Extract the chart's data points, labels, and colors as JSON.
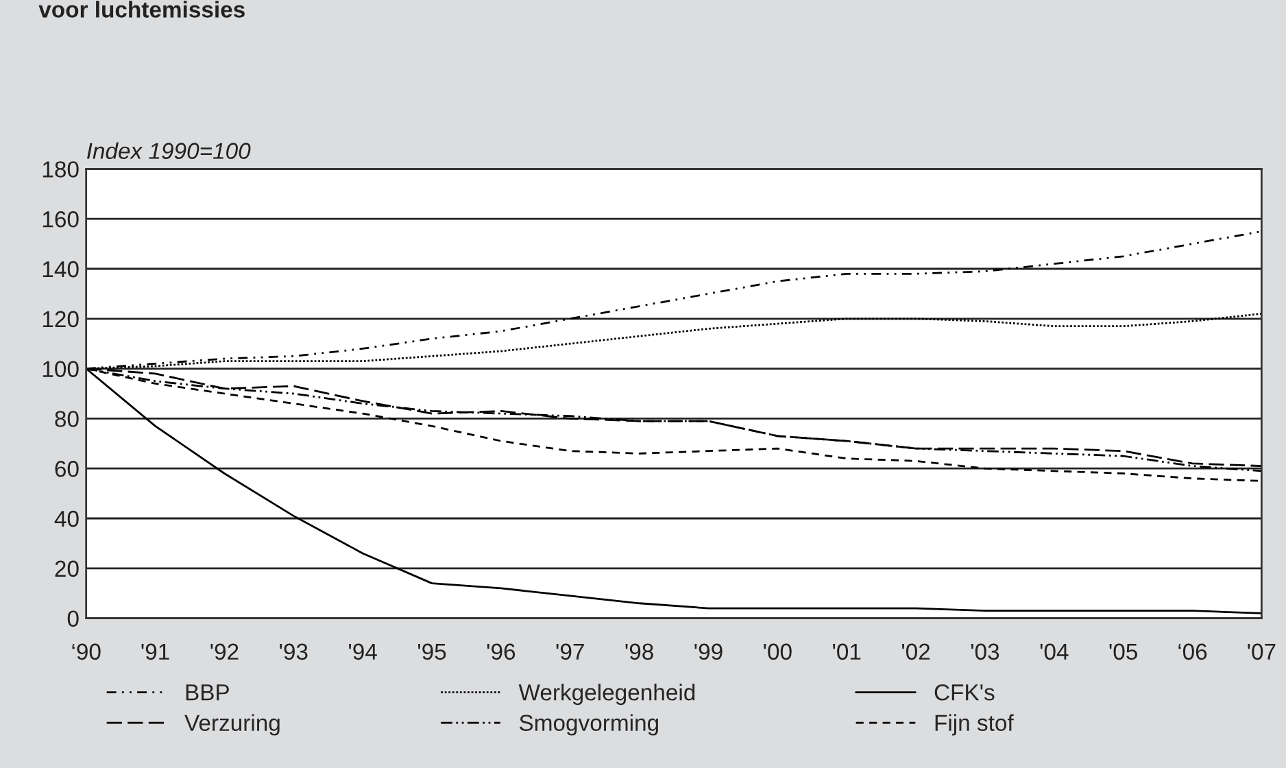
{
  "chart_data": {
    "type": "line",
    "title": "voor luchtemissies",
    "ylabel": "Index 1990=100",
    "categories": [
      "‘90",
      "'91",
      "'92",
      "'93",
      "'94",
      "'95",
      "'96",
      "'97",
      "'98",
      "'99",
      "'00",
      "'01",
      "'02",
      "'03",
      "'04",
      "'05",
      "‘06",
      "'07"
    ],
    "series": [
      {
        "name": "BBP",
        "color": "#000000",
        "line_style": "dashed",
        "values": [
          100,
          102,
          104,
          105,
          108,
          112,
          115,
          120,
          125,
          130,
          135,
          138,
          138,
          139,
          142,
          145,
          150,
          155
        ]
      },
      {
        "name": "Werkgelegenheid",
        "color": "#000000",
        "line_style": "dotted",
        "values": [
          100,
          101,
          103,
          103,
          103,
          105,
          107,
          110,
          113,
          116,
          118,
          120,
          120,
          119,
          117,
          117,
          119,
          122
        ]
      },
      {
        "name": "CFK's",
        "color": "#000000",
        "line_style": "solid",
        "values": [
          100,
          77,
          58,
          41,
          26,
          14,
          12,
          9,
          6,
          4,
          4,
          4,
          4,
          3,
          3,
          3,
          3,
          2
        ]
      },
      {
        "name": "Verzuring",
        "color": "#000000",
        "line_style": "dashed",
        "values": [
          100,
          98,
          92,
          93,
          87,
          82,
          83,
          80,
          79,
          79,
          73,
          71,
          68,
          68,
          68,
          67,
          62,
          61
        ]
      },
      {
        "name": "Smogvorming",
        "color": "#000000",
        "line_style": "dashed",
        "values": [
          100,
          95,
          92,
          90,
          86,
          83,
          82,
          81,
          79,
          79,
          73,
          71,
          68,
          67,
          66,
          65,
          61,
          59
        ]
      },
      {
        "name": "Fijn stof",
        "color": "#000000",
        "line_style": "dashed",
        "values": [
          100,
          94,
          90,
          86,
          82,
          77,
          71,
          67,
          66,
          67,
          68,
          64,
          63,
          60,
          59,
          58,
          56,
          55
        ]
      }
    ],
    "ylim": [
      0,
      180
    ],
    "yticks": [
      0,
      20,
      40,
      60,
      80,
      100,
      120,
      140,
      160,
      180
    ],
    "grid": "y",
    "legend": "bottom",
    "marker": "none"
  }
}
